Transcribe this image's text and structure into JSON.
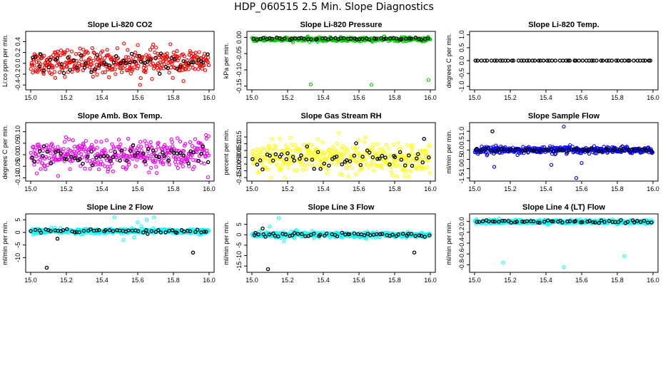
{
  "page_title": "HDP_060515  2.5 Min. Slope Diagnostics",
  "chart_data": [
    {
      "type": "scatter",
      "title": "Slope Li-820 CO2",
      "ylabel": "Li:co ppm per min.",
      "xlim": [
        15.0,
        16.0
      ],
      "ylim": [
        -0.45,
        0.55
      ],
      "xticks": [
        "15.0",
        "15.2",
        "15.4",
        "15.6",
        "15.8",
        "16.0"
      ],
      "yticks": [
        -0.4,
        -0.2,
        0.0,
        0.2,
        0.4
      ],
      "ytick_labels": [
        "-0.4",
        "-0.2",
        "0.0",
        "0.2",
        "0.4"
      ],
      "series": [
        {
          "color": "#ff0000",
          "center": 0.02,
          "spread": 0.24,
          "n": 380,
          "outliers": []
        },
        {
          "color": "#000000",
          "center": 0.0,
          "spread": 0.15,
          "n": 55,
          "outliers": []
        }
      ]
    },
    {
      "type": "scatter",
      "title": "Slope Li-820 Pressure",
      "ylabel": "kPa per min.",
      "xlim": [
        15.0,
        16.0
      ],
      "ylim": [
        -0.155,
        0.012
      ],
      "xticks": [
        "15.0",
        "15.2",
        "15.4",
        "15.6",
        "15.8",
        "16.0"
      ],
      "yticks": [
        -0.15,
        -0.1,
        -0.05,
        0.0
      ],
      "ytick_labels": [
        "-0.15",
        "-0.10",
        "-0.05",
        "0.00"
      ],
      "series": [
        {
          "color": "#00cc00",
          "center": -0.006,
          "spread": 0.006,
          "n": 380,
          "outliers": [
            [
              15.33,
              -0.145
            ],
            [
              15.67,
              -0.146
            ],
            [
              15.99,
              -0.131
            ]
          ]
        },
        {
          "color": "#000000",
          "center": -0.004,
          "spread": 0.004,
          "n": 55,
          "outliers": []
        }
      ]
    },
    {
      "type": "scatter",
      "title": "Slope Li-820 Temp.",
      "ylabel": "degrees C per min.",
      "xlim": [
        15.0,
        16.0
      ],
      "ylim": [
        -1.05,
        1.05
      ],
      "xticks": [
        "15.0",
        "15.2",
        "15.4",
        "15.6",
        "15.8",
        "16.0"
      ],
      "yticks": [
        -1.0,
        -0.5,
        0.0,
        0.5,
        1.0
      ],
      "ytick_labels": [
        "-1.0",
        "-0.5",
        "0.0",
        "0.5",
        "1.0"
      ],
      "series": [
        {
          "color": "#ff00ff",
          "center": 0.0,
          "spread": 0.0,
          "n": 1,
          "outliers": [
            [
              15.005,
              0.0
            ]
          ]
        },
        {
          "color": "#000000",
          "center": 0.0,
          "spread": 0.0,
          "n": 60,
          "outliers": []
        }
      ]
    },
    {
      "type": "scatter",
      "title": "Slope Amb. Box Temp.",
      "ylabel": "degrees C per min.",
      "xlim": [
        15.0,
        16.0
      ],
      "ylim": [
        -0.105,
        0.13
      ],
      "xticks": [
        "15.0",
        "15.2",
        "15.4",
        "15.6",
        "15.8",
        "16.0"
      ],
      "yticks": [
        -0.1,
        -0.05,
        0.0,
        0.05,
        0.1
      ],
      "ytick_labels": [
        "-0.10",
        "-0.05",
        "0.00",
        "0.05",
        "0.10"
      ],
      "series": [
        {
          "color": "#ee00ee",
          "center": 0.0,
          "spread": 0.065,
          "n": 380,
          "outliers": []
        },
        {
          "color": "#000000",
          "center": 0.0,
          "spread": 0.045,
          "n": 55,
          "outliers": []
        }
      ]
    },
    {
      "type": "scatter",
      "title": "Slope Gas Stream RH",
      "ylabel": "percent per min.",
      "xlim": [
        15.0,
        16.0
      ],
      "ylim": [
        -0.16,
        0.24
      ],
      "xticks": [
        "15.0",
        "15.2",
        "15.4",
        "15.6",
        "15.8",
        "16.0"
      ],
      "yticks": [
        -0.15,
        -0.1,
        -0.05,
        0.0,
        0.05,
        0.1,
        0.15
      ],
      "ytick_labels": [
        "-0.15",
        "-0.10",
        "-0.05",
        "0.00",
        "0.05",
        "0.10",
        "0.15"
      ],
      "series": [
        {
          "color": "#ffff00",
          "center": 0.0,
          "spread": 0.11,
          "n": 380,
          "outliers": []
        },
        {
          "color": "#000000",
          "center": 0.0,
          "spread": 0.08,
          "n": 55,
          "outliers": []
        }
      ]
    },
    {
      "type": "scatter",
      "title": "Slope Sample Flow",
      "ylabel": "ml/min per min.",
      "xlim": [
        15.0,
        16.0
      ],
      "ylim": [
        -1.55,
        1.35
      ],
      "xticks": [
        "15.0",
        "15.2",
        "15.4",
        "15.6",
        "15.8",
        "16.0"
      ],
      "yticks": [
        -1.5,
        -1.0,
        -0.5,
        0.0,
        0.5,
        1.0
      ],
      "ytick_labels": [
        "-1.5",
        "-1.0",
        "-0.5",
        "0.0",
        "0.5",
        "1.0"
      ],
      "series": [
        {
          "color": "#0000ff",
          "center": 0.0,
          "spread": 0.18,
          "n": 380,
          "outliers": [
            [
              15.5,
              1.25
            ],
            [
              15.57,
              -1.5
            ],
            [
              15.11,
              -0.9
            ],
            [
              15.43,
              -0.8
            ],
            [
              15.6,
              -0.7
            ]
          ]
        },
        {
          "color": "#000000",
          "center": 0.0,
          "spread": 0.08,
          "n": 55,
          "outliers": [
            [
              15.1,
              1.0
            ]
          ]
        }
      ]
    },
    {
      "type": "scatter",
      "title": "Slope Line 2 Flow",
      "ylabel": "ml/min per min.",
      "xlim": [
        15.0,
        16.0
      ],
      "ylim": [
        -15.0,
        6.5
      ],
      "xticks": [
        "15.0",
        "15.2",
        "15.4",
        "15.6",
        "15.8",
        "16.0"
      ],
      "yticks": [
        -10,
        -5,
        0,
        5
      ],
      "ytick_labels": [
        "-10",
        "-5",
        "0",
        "5"
      ],
      "series": [
        {
          "color": "#00ffff",
          "center": 0.5,
          "spread": 1.0,
          "n": 380,
          "outliers": [
            [
              15.47,
              6.0
            ],
            [
              15.6,
              4.0
            ],
            [
              15.65,
              5.0
            ],
            [
              15.69,
              6.0
            ],
            [
              15.52,
              -3.0
            ],
            [
              15.58,
              -2.0
            ],
            [
              15.62,
              2.5
            ]
          ]
        },
        {
          "color": "#000000",
          "center": 0.5,
          "spread": 0.9,
          "n": 55,
          "outliers": [
            [
              15.09,
              -14.0
            ],
            [
              15.91,
              -8.0
            ],
            [
              15.15,
              -2.5
            ]
          ]
        }
      ]
    },
    {
      "type": "scatter",
      "title": "Slope Line 3 Flow",
      "ylabel": "ml/min per min.",
      "xlim": [
        15.0,
        16.0
      ],
      "ylim": [
        -17.0,
        9.0
      ],
      "xticks": [
        "15.0",
        "15.2",
        "15.4",
        "15.6",
        "15.8",
        "16.0"
      ],
      "yticks": [
        -15,
        -10,
        -5,
        0,
        5
      ],
      "ytick_labels": [
        "-15",
        "-10",
        "-5",
        "0",
        "5"
      ],
      "series": [
        {
          "color": "#00ffff",
          "center": 0.0,
          "spread": 1.2,
          "n": 380,
          "outliers": [
            [
              15.15,
              8.0
            ],
            [
              15.1,
              4.0
            ],
            [
              15.18,
              -3.0
            ]
          ]
        },
        {
          "color": "#000000",
          "center": 0.0,
          "spread": 1.0,
          "n": 55,
          "outliers": [
            [
              15.09,
              -16.5
            ],
            [
              15.91,
              -8.5
            ],
            [
              15.06,
              3.0
            ]
          ]
        }
      ]
    },
    {
      "type": "scatter",
      "title": "Slope Line 4 (LT) Flow",
      "ylabel": "ml/min per min.",
      "xlim": [
        15.0,
        16.0
      ],
      "ylim": [
        -0.9,
        0.1
      ],
      "xticks": [
        "15.0",
        "15.2",
        "15.4",
        "15.6",
        "15.8",
        "16.0"
      ],
      "yticks": [
        -0.8,
        -0.6,
        -0.4,
        -0.2,
        0.0
      ],
      "ytick_labels": [
        "-0.8",
        "-0.6",
        "-0.4",
        "-0.2",
        "0.0"
      ],
      "series": [
        {
          "color": "#00ffff",
          "center": -0.005,
          "spread": 0.035,
          "n": 380,
          "outliers": [
            [
              15.16,
              -0.76
            ],
            [
              15.5,
              -0.84
            ],
            [
              15.84,
              -0.64
            ]
          ]
        },
        {
          "color": "#000000",
          "center": -0.005,
          "spread": 0.03,
          "n": 55,
          "outliers": []
        }
      ]
    }
  ]
}
